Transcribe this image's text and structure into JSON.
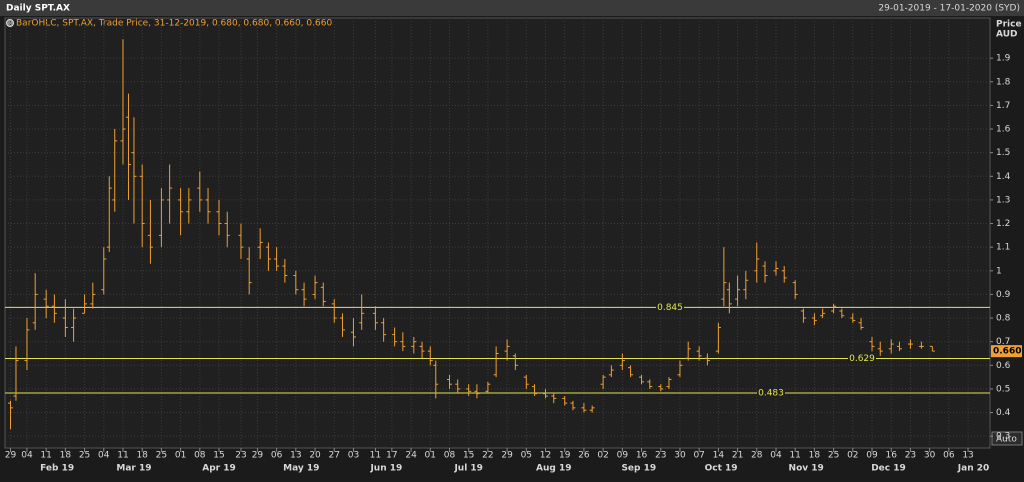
{
  "header": {
    "title": "Daily SPT.AX",
    "range": "29-01-2019 - 17-01-2020 (SYD)"
  },
  "chart_data": {
    "type": "ohlc",
    "legend": "BarOHLC, SPT.AX, Trade Price, 31-12-2019, 0.680, 0.680, 0.660, 0.660",
    "y_label": "Price",
    "y_unit": "AUD",
    "scale_mode": "Auto",
    "color": "#f0a030",
    "line_color": "#e4e44c",
    "grid": true,
    "x": [
      "2019-01-29",
      "2019-01-31",
      "2019-02-04",
      "2019-02-07",
      "2019-02-11",
      "2019-02-14",
      "2019-02-18",
      "2019-02-21",
      "2019-02-25",
      "2019-02-28",
      "2019-03-04",
      "2019-03-06",
      "2019-03-08",
      "2019-03-11",
      "2019-03-13",
      "2019-03-15",
      "2019-03-18",
      "2019-03-21",
      "2019-03-25",
      "2019-03-28",
      "2019-04-01",
      "2019-04-04",
      "2019-04-08",
      "2019-04-11",
      "2019-04-15",
      "2019-04-18",
      "2019-04-23",
      "2019-04-26",
      "2019-04-30",
      "2019-05-03",
      "2019-05-06",
      "2019-05-09",
      "2019-05-13",
      "2019-05-16",
      "2019-05-20",
      "2019-05-23",
      "2019-05-27",
      "2019-05-30",
      "2019-06-03",
      "2019-06-06",
      "2019-06-11",
      "2019-06-14",
      "2019-06-18",
      "2019-06-21",
      "2019-06-25",
      "2019-06-28",
      "2019-07-01",
      "2019-07-03",
      "2019-07-08",
      "2019-07-11",
      "2019-07-15",
      "2019-07-18",
      "2019-07-22",
      "2019-07-25",
      "2019-07-29",
      "2019-08-01",
      "2019-08-05",
      "2019-08-08",
      "2019-08-12",
      "2019-08-15",
      "2019-08-19",
      "2019-08-22",
      "2019-08-26",
      "2019-08-29",
      "2019-09-02",
      "2019-09-05",
      "2019-09-09",
      "2019-09-12",
      "2019-09-16",
      "2019-09-19",
      "2019-09-23",
      "2019-09-26",
      "2019-09-30",
      "2019-10-03",
      "2019-10-07",
      "2019-10-10",
      "2019-10-14",
      "2019-10-16",
      "2019-10-18",
      "2019-10-21",
      "2019-10-24",
      "2019-10-28",
      "2019-10-31",
      "2019-11-04",
      "2019-11-07",
      "2019-11-11",
      "2019-11-14",
      "2019-11-18",
      "2019-11-21",
      "2019-11-25",
      "2019-11-28",
      "2019-12-02",
      "2019-12-05",
      "2019-12-09",
      "2019-12-12",
      "2019-12-16",
      "2019-12-19",
      "2019-12-23",
      "2019-12-27",
      "2019-12-31"
    ],
    "open": [
      0.44,
      0.47,
      0.62,
      0.78,
      0.88,
      0.85,
      0.8,
      0.76,
      0.82,
      0.86,
      0.92,
      1.1,
      1.3,
      1.55,
      1.65,
      1.5,
      1.4,
      1.15,
      1.15,
      1.3,
      1.3,
      1.25,
      1.35,
      1.3,
      1.25,
      1.2,
      1.15,
      1.05,
      1.1,
      1.1,
      1.05,
      1.02,
      0.98,
      0.92,
      0.9,
      0.93,
      0.86,
      0.8,
      0.74,
      0.78,
      0.82,
      0.78,
      0.73,
      0.7,
      0.68,
      0.68,
      0.66,
      0.6,
      0.54,
      0.52,
      0.5,
      0.49,
      0.49,
      0.56,
      0.66,
      0.64,
      0.55,
      0.51,
      0.48,
      0.47,
      0.46,
      0.44,
      0.42,
      0.41,
      0.52,
      0.56,
      0.6,
      0.59,
      0.55,
      0.53,
      0.51,
      0.51,
      0.56,
      0.63,
      0.66,
      0.63,
      0.66,
      0.88,
      0.92,
      0.88,
      0.92,
      1.0,
      1.02,
      1.0,
      1.0,
      0.95,
      0.83,
      0.8,
      0.81,
      0.83,
      0.83,
      0.8,
      0.78,
      0.7,
      0.67,
      0.67,
      0.68,
      0.69,
      0.68,
      0.68
    ],
    "high": [
      0.45,
      0.68,
      0.8,
      0.99,
      0.92,
      0.9,
      0.88,
      0.84,
      0.9,
      0.95,
      1.1,
      1.4,
      1.6,
      1.98,
      1.75,
      1.65,
      1.45,
      1.3,
      1.35,
      1.45,
      1.35,
      1.35,
      1.42,
      1.35,
      1.3,
      1.25,
      1.2,
      1.1,
      1.18,
      1.12,
      1.1,
      1.05,
      1.0,
      0.95,
      0.98,
      0.95,
      0.88,
      0.82,
      0.8,
      0.9,
      0.85,
      0.8,
      0.76,
      0.74,
      0.72,
      0.7,
      0.68,
      0.62,
      0.56,
      0.54,
      0.52,
      0.52,
      0.53,
      0.68,
      0.71,
      0.65,
      0.56,
      0.52,
      0.5,
      0.48,
      0.47,
      0.45,
      0.44,
      0.43,
      0.56,
      0.6,
      0.65,
      0.6,
      0.56,
      0.54,
      0.52,
      0.55,
      0.62,
      0.7,
      0.68,
      0.65,
      0.78,
      1.1,
      0.95,
      0.98,
      1.0,
      1.12,
      1.04,
      1.04,
      1.02,
      0.96,
      0.84,
      0.82,
      0.84,
      0.86,
      0.84,
      0.82,
      0.8,
      0.72,
      0.7,
      0.71,
      0.7,
      0.71,
      0.7,
      0.68
    ],
    "low": [
      0.33,
      0.45,
      0.58,
      0.75,
      0.8,
      0.78,
      0.72,
      0.7,
      0.82,
      0.84,
      0.9,
      1.08,
      1.25,
      1.45,
      1.3,
      1.2,
      1.1,
      1.03,
      1.1,
      1.2,
      1.15,
      1.2,
      1.25,
      1.2,
      1.15,
      1.1,
      1.05,
      0.9,
      1.05,
      1.0,
      1.0,
      0.95,
      0.9,
      0.85,
      0.88,
      0.85,
      0.78,
      0.72,
      0.68,
      0.75,
      0.75,
      0.7,
      0.68,
      0.66,
      0.65,
      0.63,
      0.6,
      0.46,
      0.5,
      0.48,
      0.47,
      0.46,
      0.48,
      0.55,
      0.62,
      0.58,
      0.5,
      0.47,
      0.46,
      0.44,
      0.43,
      0.41,
      0.4,
      0.4,
      0.5,
      0.55,
      0.58,
      0.55,
      0.52,
      0.5,
      0.49,
      0.5,
      0.55,
      0.62,
      0.62,
      0.6,
      0.65,
      0.85,
      0.82,
      0.85,
      0.88,
      0.95,
      0.95,
      0.98,
      0.95,
      0.88,
      0.78,
      0.77,
      0.8,
      0.82,
      0.8,
      0.78,
      0.75,
      0.66,
      0.64,
      0.65,
      0.66,
      0.67,
      0.67,
      0.66
    ],
    "close": [
      0.42,
      0.62,
      0.75,
      0.9,
      0.85,
      0.82,
      0.76,
      0.8,
      0.86,
      0.9,
      1.05,
      1.35,
      1.55,
      1.6,
      1.45,
      1.4,
      1.2,
      1.1,
      1.3,
      1.35,
      1.25,
      1.3,
      1.3,
      1.25,
      1.2,
      1.15,
      1.1,
      0.95,
      1.12,
      1.05,
      1.02,
      0.98,
      0.92,
      0.88,
      0.95,
      0.87,
      0.8,
      0.75,
      0.72,
      0.82,
      0.78,
      0.73,
      0.7,
      0.68,
      0.7,
      0.66,
      0.62,
      0.52,
      0.52,
      0.5,
      0.49,
      0.48,
      0.52,
      0.65,
      0.68,
      0.6,
      0.52,
      0.48,
      0.47,
      0.46,
      0.44,
      0.42,
      0.41,
      0.42,
      0.55,
      0.58,
      0.62,
      0.56,
      0.53,
      0.51,
      0.5,
      0.54,
      0.6,
      0.67,
      0.64,
      0.62,
      0.76,
      0.95,
      0.86,
      0.92,
      0.96,
      1.05,
      0.98,
      1.01,
      0.97,
      0.9,
      0.8,
      0.79,
      0.82,
      0.85,
      0.81,
      0.79,
      0.76,
      0.68,
      0.66,
      0.69,
      0.67,
      0.69,
      0.68,
      0.66
    ],
    "last_price": {
      "value": 0.66,
      "label": "0.660"
    },
    "hlines": [
      0.845,
      0.629,
      0.483
    ],
    "xlim": [
      "2019-01-27",
      "2020-01-21"
    ],
    "xticks": [
      {
        "value": "2019-01-29",
        "label": "29"
      },
      {
        "value": "2019-02-04",
        "label": "04"
      },
      {
        "value": "2019-02-11",
        "label": "11"
      },
      {
        "value": "2019-02-18",
        "label": "18"
      },
      {
        "value": "2019-02-25",
        "label": "25"
      },
      {
        "value": "2019-03-04",
        "label": "04"
      },
      {
        "value": "2019-03-11",
        "label": "11"
      },
      {
        "value": "2019-03-18",
        "label": "18"
      },
      {
        "value": "2019-03-25",
        "label": "25"
      },
      {
        "value": "2019-04-01",
        "label": "01"
      },
      {
        "value": "2019-04-08",
        "label": "08"
      },
      {
        "value": "2019-04-15",
        "label": "15"
      },
      {
        "value": "2019-04-23",
        "label": "23"
      },
      {
        "value": "2019-04-29",
        "label": "29"
      },
      {
        "value": "2019-05-06",
        "label": "06"
      },
      {
        "value": "2019-05-13",
        "label": "13"
      },
      {
        "value": "2019-05-20",
        "label": "20"
      },
      {
        "value": "2019-05-27",
        "label": "27"
      },
      {
        "value": "2019-06-03",
        "label": "03"
      },
      {
        "value": "2019-06-11",
        "label": "11"
      },
      {
        "value": "2019-06-17",
        "label": "17"
      },
      {
        "value": "2019-06-24",
        "label": "24"
      },
      {
        "value": "2019-07-01",
        "label": "01"
      },
      {
        "value": "2019-07-08",
        "label": "08"
      },
      {
        "value": "2019-07-15",
        "label": "15"
      },
      {
        "value": "2019-07-22",
        "label": "22"
      },
      {
        "value": "2019-07-29",
        "label": "29"
      },
      {
        "value": "2019-08-05",
        "label": "05"
      },
      {
        "value": "2019-08-12",
        "label": "12"
      },
      {
        "value": "2019-08-19",
        "label": "19"
      },
      {
        "value": "2019-08-26",
        "label": "26"
      },
      {
        "value": "2019-09-02",
        "label": "02"
      },
      {
        "value": "2019-09-09",
        "label": "09"
      },
      {
        "value": "2019-09-16",
        "label": "16"
      },
      {
        "value": "2019-09-23",
        "label": "23"
      },
      {
        "value": "2019-09-30",
        "label": "30"
      },
      {
        "value": "2019-10-07",
        "label": "07"
      },
      {
        "value": "2019-10-14",
        "label": "14"
      },
      {
        "value": "2019-10-21",
        "label": "21"
      },
      {
        "value": "2019-10-28",
        "label": "28"
      },
      {
        "value": "2019-11-04",
        "label": "04"
      },
      {
        "value": "2019-11-11",
        "label": "11"
      },
      {
        "value": "2019-11-18",
        "label": "18"
      },
      {
        "value": "2019-11-25",
        "label": "25"
      },
      {
        "value": "2019-12-02",
        "label": "02"
      },
      {
        "value": "2019-12-09",
        "label": "09"
      },
      {
        "value": "2019-12-16",
        "label": "16"
      },
      {
        "value": "2019-12-23",
        "label": "23"
      },
      {
        "value": "2019-12-30",
        "label": "30"
      },
      {
        "value": "2020-01-06",
        "label": "06"
      },
      {
        "value": "2020-01-13",
        "label": "13"
      }
    ],
    "x_months": [
      {
        "value": "2019-02",
        "label": "Feb 19"
      },
      {
        "value": "2019-03",
        "label": "Mar 19"
      },
      {
        "value": "2019-04",
        "label": "Apr 19"
      },
      {
        "value": "2019-05",
        "label": "May 19"
      },
      {
        "value": "2019-06",
        "label": "Jun 19"
      },
      {
        "value": "2019-07",
        "label": "Jul 19"
      },
      {
        "value": "2019-08",
        "label": "Aug 19"
      },
      {
        "value": "2019-09",
        "label": "Sep 19"
      },
      {
        "value": "2019-10",
        "label": "Oct 19"
      },
      {
        "value": "2019-11",
        "label": "Nov 19"
      },
      {
        "value": "2019-12",
        "label": "Dec 19"
      },
      {
        "value": "2020-01",
        "label": "Jan 20"
      }
    ],
    "ylim": [
      0.25,
      2.07
    ],
    "yticks": [
      0.3,
      0.4,
      0.5,
      0.6,
      0.7,
      0.8,
      0.9,
      1,
      1.1,
      1.2,
      1.3,
      1.4,
      1.5,
      1.6,
      1.7,
      1.8,
      1.9
    ]
  }
}
